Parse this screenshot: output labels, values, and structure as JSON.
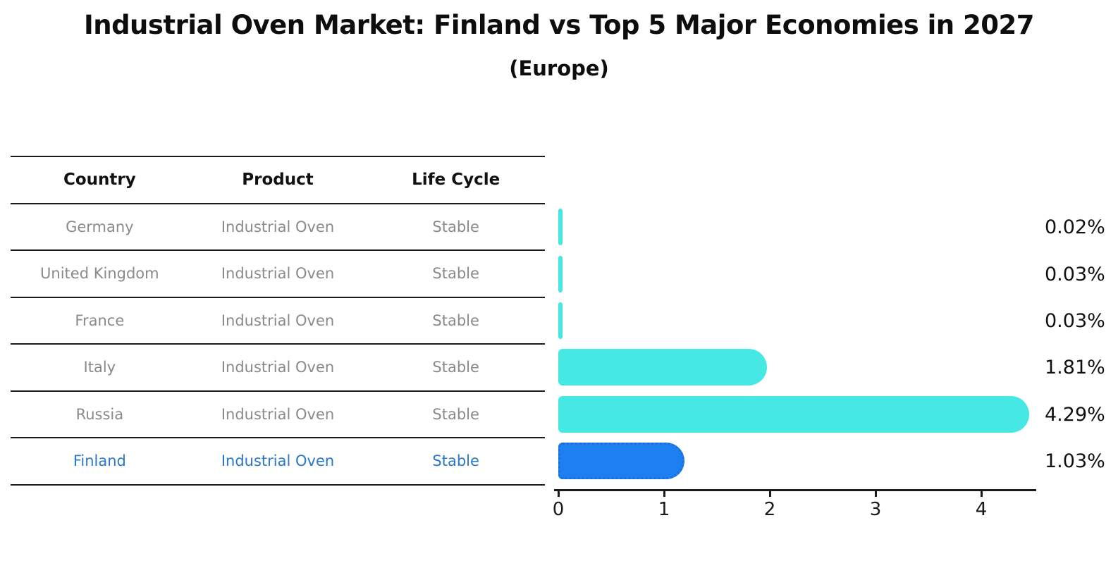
{
  "title": "Industrial Oven Market: Finland vs Top 5 Major Economies in 2027",
  "subtitle": "(Europe)",
  "table": {
    "headers": [
      "Country",
      "Product",
      "Life Cycle"
    ],
    "rows": [
      {
        "country": "Germany",
        "product": "Industrial Oven",
        "life_cycle": "Stable",
        "highlight": false
      },
      {
        "country": "United Kingdom",
        "product": "Industrial Oven",
        "life_cycle": "Stable",
        "highlight": false
      },
      {
        "country": "France",
        "product": "Industrial Oven",
        "life_cycle": "Stable",
        "highlight": false
      },
      {
        "country": "Italy",
        "product": "Industrial Oven",
        "life_cycle": "Stable",
        "highlight": false
      },
      {
        "country": "Russia",
        "product": "Industrial Oven",
        "life_cycle": "Stable",
        "highlight": false
      },
      {
        "country": "Finland",
        "product": "Industrial Oven",
        "life_cycle": "Stable",
        "highlight": true
      }
    ]
  },
  "chart_data": {
    "type": "bar",
    "orientation": "horizontal",
    "title": "Industrial Oven Market: Finland vs Top 5 Major Economies in 2027",
    "subtitle": "(Europe)",
    "categories": [
      "Germany",
      "United Kingdom",
      "France",
      "Italy",
      "Russia",
      "Finland"
    ],
    "values": [
      0.02,
      0.03,
      0.03,
      1.81,
      4.29,
      1.03
    ],
    "value_labels": [
      "0.02%",
      "0.03%",
      "0.03%",
      "1.81%",
      "4.29%",
      "1.03%"
    ],
    "xticks": [
      "0",
      "1",
      "2",
      "3",
      "4"
    ],
    "xlim": [
      0,
      4.5
    ],
    "grid": false,
    "legend": false,
    "highlight_category": "Finland"
  },
  "colors": {
    "bar_default": "#46E8E4",
    "bar_highlight": "#1E80F0",
    "bar_highlight_border": "#1A6EDE",
    "highlight_text": "#2A78C8",
    "row_text": "#8A8A8A",
    "axis": "#1A1A1A"
  }
}
